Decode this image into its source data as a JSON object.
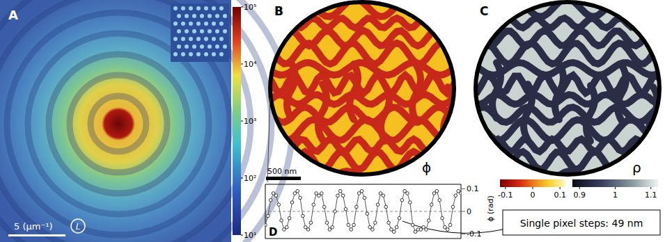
{
  "panels": {
    "A": {
      "label": "A",
      "scale_bar": "5 (µm⁻¹)",
      "icon": "L",
      "colorbar": {
        "log": true,
        "range": [
          10,
          100000
        ],
        "ticks": [
          {
            "value": 10,
            "label": "10¹"
          },
          {
            "value": 100,
            "label": "10²"
          },
          {
            "value": 1000,
            "label": "10³"
          },
          {
            "value": 10000,
            "label": "10⁴"
          },
          {
            "value": 100000,
            "label": "10⁵"
          }
        ]
      }
    },
    "B": {
      "label": "B",
      "symbol": "ϕ",
      "scale_bar": "500 nm",
      "colorbar": {
        "range": [
          -0.12,
          0.12
        ],
        "ticks": [
          -0.1,
          0,
          0.1
        ]
      }
    },
    "C": {
      "label": "C",
      "symbol": "ρ",
      "colorbar": {
        "range": [
          0.88,
          1.12
        ],
        "ticks": [
          0.9,
          1,
          1.1
        ]
      }
    },
    "D": {
      "label": "D",
      "annotation": "Single pixel steps: 49 nm"
    }
  },
  "chart_data": {
    "type": "line",
    "y_label": "ϕ (rad)",
    "x": [
      0,
      1,
      2,
      3,
      4,
      5,
      6,
      7,
      8,
      9,
      10,
      11,
      12,
      13,
      14,
      15,
      16,
      17,
      18,
      19,
      20,
      21,
      22,
      23,
      24,
      25,
      26,
      27,
      28,
      29,
      30,
      31,
      32,
      33,
      34,
      35,
      36,
      37,
      38,
      39,
      40,
      41,
      42,
      43,
      44,
      45,
      46,
      47,
      48,
      49,
      50,
      51,
      52,
      53,
      54,
      55,
      56,
      57,
      58,
      59,
      60,
      61,
      62,
      63,
      64,
      65,
      66,
      67,
      68,
      69,
      70,
      71,
      72,
      73
    ],
    "values": [
      -0.06,
      -0.02,
      0.05,
      0.08,
      0.07,
      0.03,
      -0.04,
      -0.08,
      -0.07,
      -0.03,
      0.04,
      0.08,
      0.09,
      0.06,
      -0.02,
      -0.07,
      -0.08,
      -0.05,
      0.03,
      0.08,
      0.07,
      0.08,
      0.02,
      -0.05,
      -0.08,
      -0.07,
      0.0,
      0.07,
      0.09,
      0.07,
      0.01,
      -0.06,
      -0.08,
      -0.06,
      0.02,
      0.08,
      0.09,
      0.06,
      -0.01,
      -0.07,
      -0.08,
      -0.05,
      0.03,
      0.08,
      0.07,
      0.02,
      -0.05,
      -0.08,
      -0.09,
      -0.07,
      -0.03,
      0.05,
      0.09,
      0.08,
      0.04,
      -0.06,
      -0.09,
      -0.08,
      -0.08,
      -0.07,
      -0.08,
      -0.04,
      0.03,
      0.08,
      0.09,
      0.05,
      -0.03,
      -0.07,
      -0.08,
      -0.06,
      0.02,
      0.07,
      0.09,
      0.08
    ],
    "xlim": [
      0,
      73
    ],
    "ylim": [
      -0.12,
      0.12
    ],
    "yticks": [
      -0.1,
      0,
      0.1
    ],
    "reference_y": 0,
    "tick_labels": "y",
    "marker": "circle",
    "color": "#555555"
  }
}
